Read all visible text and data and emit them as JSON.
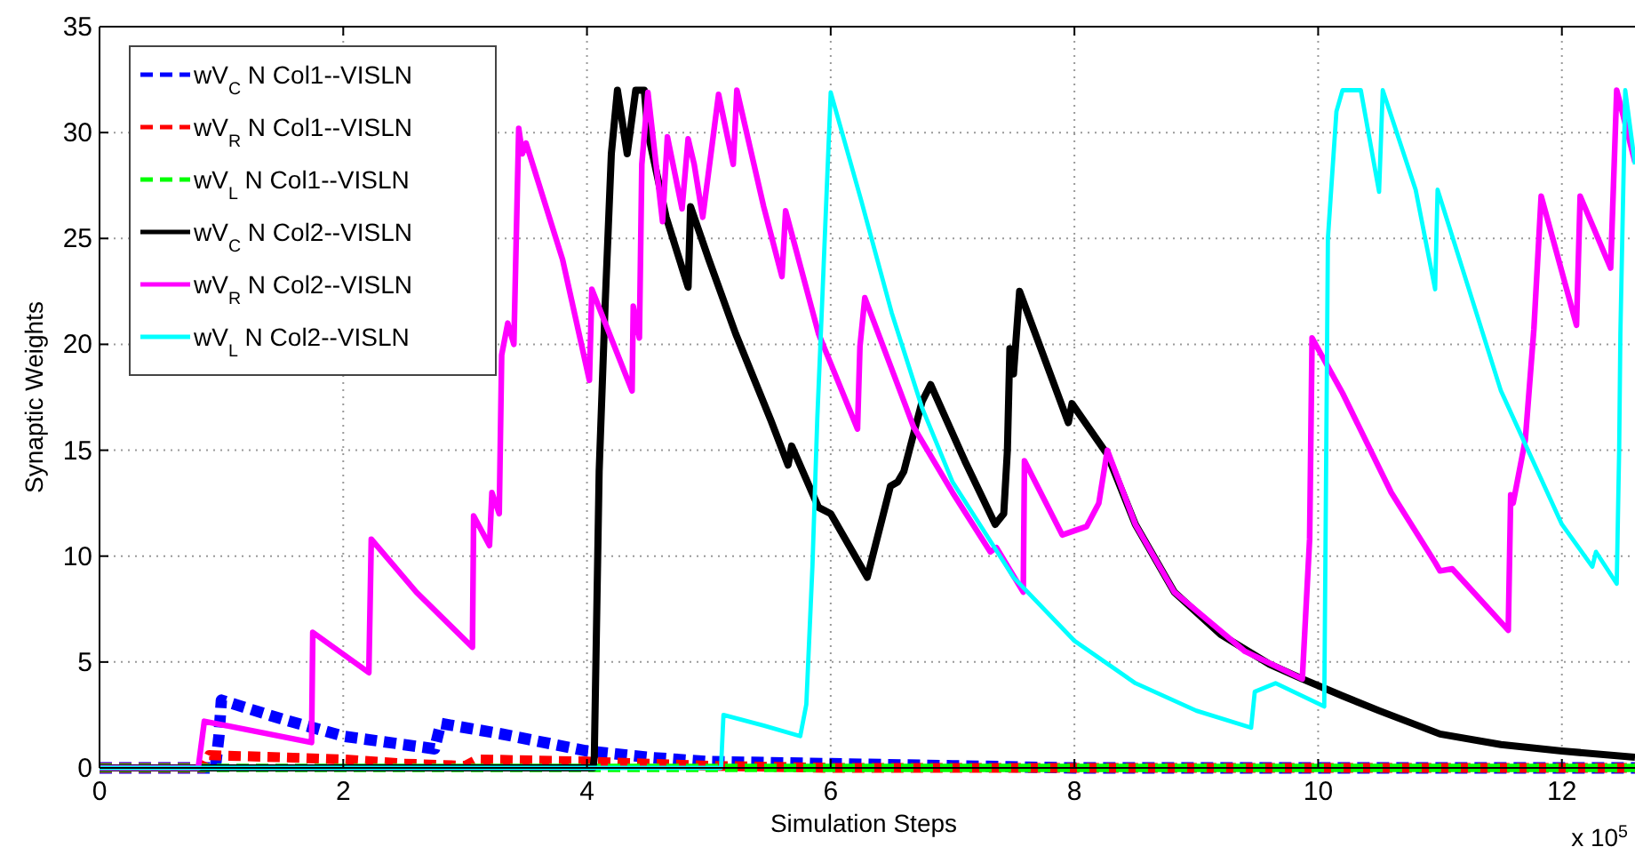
{
  "chart_data": {
    "type": "line",
    "xlabel": "Simulation Steps",
    "ylabel": "Synaptic Weights",
    "annotations": [
      "x 10$^{5}$"
    ],
    "xlim": [
      0,
      12.6
    ],
    "ylim": [
      0,
      35
    ],
    "xticks": [
      0,
      2,
      4,
      6,
      8,
      10,
      12
    ],
    "yticks": [
      0,
      5,
      10,
      15,
      20,
      25,
      30,
      35
    ],
    "grid": true,
    "legend": "top left",
    "marker": "none",
    "series": [
      {
        "name": "wV$_{C}$ N Col1--VISLN",
        "color": "#0000ff",
        "line_style": "dashed",
        "x": [
          0,
          0.95,
          0.98,
          1.0,
          1.5,
          2.0,
          2.5,
          2.75,
          2.8,
          3.3,
          4.0,
          4.5,
          5.0,
          6.0,
          7.0,
          8.0,
          9.0,
          12.6
        ],
        "values": [
          0,
          0,
          1.5,
          3.2,
          2.3,
          1.5,
          1.1,
          0.9,
          2.1,
          1.6,
          0.8,
          0.5,
          0.3,
          0.2,
          0.1,
          0,
          0,
          0
        ]
      },
      {
        "name": "wV$_{R}$ N Col1--VISLN",
        "color": "#ff0000",
        "line_style": "dashed",
        "x": [
          0,
          0.85,
          0.9,
          1.5,
          2.0,
          2.5,
          3.0,
          3.1,
          4.0,
          5.0,
          6.0,
          12.6
        ],
        "values": [
          0,
          0,
          0.6,
          0.5,
          0.4,
          0.2,
          0.1,
          0.4,
          0.3,
          0.1,
          0,
          0
        ]
      },
      {
        "name": "wV$_{L}$ N Col1--VISLN",
        "color": "#00ff00",
        "line_style": "dashed",
        "x": [
          0,
          12.6
        ],
        "values": [
          0,
          0
        ]
      },
      {
        "name": "wV$_{C}$ N Col2--VISLN",
        "color": "#000000",
        "line_style": "solid",
        "x": [
          0,
          4.05,
          4.06,
          4.1,
          4.15,
          4.2,
          4.25,
          4.33,
          4.4,
          4.47,
          4.5,
          4.65,
          4.83,
          4.85,
          5.0,
          5.22,
          5.51,
          5.65,
          5.68,
          5.9,
          6.0,
          6.3,
          6.49,
          6.55,
          6.6,
          6.75,
          6.82,
          7.1,
          7.35,
          7.42,
          7.45,
          7.47,
          7.5,
          7.55,
          7.95,
          7.98,
          8.27,
          8.5,
          8.82,
          9.2,
          9.6,
          9.87,
          10.2,
          10.5,
          11.0,
          11.5,
          12.0,
          12.6
        ],
        "values": [
          0,
          0,
          0.5,
          14,
          22,
          29,
          32,
          29,
          32,
          32,
          30,
          26,
          22.7,
          26.5,
          24,
          20.5,
          16.4,
          14.3,
          15.2,
          12.3,
          12,
          9,
          13.3,
          13.5,
          14,
          17.3,
          18.1,
          14.5,
          11.5,
          12,
          15,
          19.8,
          18.6,
          22.5,
          16.3,
          17.2,
          14.8,
          11.5,
          8.3,
          6.3,
          4.9,
          4.2,
          3.4,
          2.7,
          1.6,
          1.1,
          0.8,
          0.5
        ]
      },
      {
        "name": "wV$_{R}$ N Col2--VISLN",
        "color": "#ff00ff",
        "line_style": "solid",
        "x": [
          0,
          0.81,
          0.86,
          1.74,
          1.75,
          2.21,
          2.23,
          2.6,
          3.06,
          3.07,
          3.2,
          3.22,
          3.28,
          3.3,
          3.35,
          3.4,
          3.44,
          3.47,
          3.5,
          3.8,
          4.02,
          4.04,
          4.37,
          4.38,
          4.43,
          4.45,
          4.5,
          4.62,
          4.66,
          4.78,
          4.83,
          4.88,
          4.95,
          5.08,
          5.2,
          5.23,
          5.45,
          5.6,
          5.63,
          5.9,
          6.0,
          6.22,
          6.24,
          6.28,
          6.68,
          7.0,
          7.31,
          7.36,
          7.58,
          7.59,
          7.9,
          8.1,
          8.2,
          8.27,
          8.5,
          8.82,
          9.4,
          9.87,
          9.93,
          9.95,
          10.2,
          10.6,
          10.96,
          11.0,
          11.1,
          11.56,
          11.58,
          11.6,
          11.7,
          11.77,
          11.83,
          12.12,
          12.15,
          12.4,
          12.45,
          12.6
        ],
        "values": [
          0,
          0,
          2.2,
          1.2,
          6.4,
          4.5,
          10.8,
          8.3,
          5.7,
          11.9,
          10.5,
          13,
          12,
          19.5,
          21,
          20,
          30.2,
          29,
          29.5,
          24,
          18.3,
          22.6,
          17.8,
          21.8,
          20.3,
          28.5,
          31.9,
          25.8,
          29.8,
          26.4,
          29.7,
          28.5,
          26,
          31.8,
          28.5,
          32,
          26.5,
          23.2,
          26.3,
          20.5,
          19.1,
          16,
          19.9,
          22.2,
          16.1,
          13,
          10.2,
          10.4,
          8.3,
          14.5,
          11,
          11.4,
          12.5,
          15,
          11.5,
          8.3,
          5.5,
          4.2,
          10.8,
          20.3,
          17.7,
          13,
          9.7,
          9.3,
          9.4,
          6.5,
          12.9,
          12.5,
          15.5,
          20.7,
          27,
          20.9,
          27,
          23.6,
          32,
          28.6
        ]
      },
      {
        "name": "wV$_{L}$ N Col2--VISLN",
        "color": "#00ffff",
        "line_style": "solid",
        "x": [
          0,
          5.1,
          5.12,
          5.45,
          5.75,
          5.8,
          5.85,
          5.89,
          5.93,
          6.0,
          6.25,
          6.5,
          6.75,
          7.0,
          7.5,
          8.0,
          8.5,
          9.0,
          9.45,
          9.48,
          9.65,
          10.05,
          10.08,
          10.15,
          10.2,
          10.35,
          10.5,
          10.53,
          10.8,
          10.96,
          10.98,
          11.5,
          12.0,
          12.25,
          12.28,
          12.45,
          12.47,
          12.48,
          12.52,
          12.6
        ],
        "values": [
          0,
          0,
          2.5,
          2,
          1.5,
          3,
          9.5,
          16.5,
          22,
          31.9,
          26.8,
          21.5,
          17,
          13.5,
          9,
          6,
          4,
          2.7,
          1.9,
          3.6,
          4,
          2.9,
          25,
          31,
          32,
          32,
          27.2,
          32,
          27.3,
          22.6,
          27.3,
          17.8,
          11.5,
          9.5,
          10.2,
          8.7,
          15,
          20.5,
          32,
          28.5
        ]
      }
    ]
  }
}
